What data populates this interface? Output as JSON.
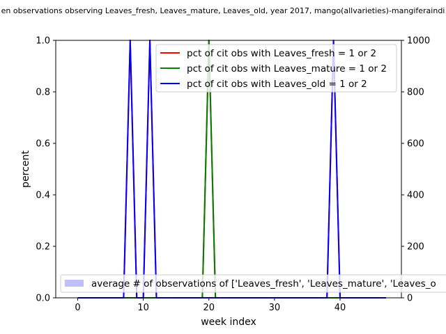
{
  "chart_data": {
    "type": "line",
    "title": "en observations observing Leaves_fresh, Leaves_mature, Leaves_old, year 2017, mango(allvarieties)-mangiferaindi",
    "xlabel": "week index",
    "ylabel": "percent",
    "xlim": [
      -3.35,
      49.35
    ],
    "ylim": [
      0,
      1.0
    ],
    "y2lim": [
      0,
      1000
    ],
    "x_ticks": [
      0,
      10,
      20,
      30,
      40
    ],
    "y_ticks": [
      0.0,
      0.2,
      0.4,
      0.6,
      0.8,
      1.0
    ],
    "y_tick_labels": [
      "0.0",
      "0.2",
      "0.4",
      "0.6",
      "0.8",
      "1.0"
    ],
    "y2_ticks": [
      0,
      200,
      400,
      600,
      800,
      1000
    ],
    "grid": false,
    "legend_lines_position": "top-right",
    "legend_bars_position": "bottom-left",
    "x": [
      0,
      1,
      2,
      3,
      4,
      5,
      6,
      7,
      8,
      9,
      10,
      11,
      12,
      13,
      14,
      15,
      16,
      17,
      18,
      19,
      20,
      21,
      22,
      23,
      24,
      25,
      26,
      27,
      28,
      29,
      30,
      31,
      32,
      33,
      34,
      35,
      36,
      37,
      38,
      39,
      40,
      41,
      42,
      43,
      44,
      45,
      46,
      47
    ],
    "series": [
      {
        "name": "pct of cit obs with Leaves_fresh = 1 or 2",
        "color": "#ff0000",
        "values": [
          0,
          0,
          0,
          0,
          0,
          0,
          0,
          0,
          1,
          0,
          0,
          1,
          0,
          0,
          0,
          0,
          0,
          0,
          0,
          0,
          1,
          0,
          0,
          0,
          0,
          0,
          0,
          0,
          0,
          0,
          0,
          0,
          0,
          0,
          0,
          0,
          0,
          0,
          0,
          1,
          0,
          0,
          0,
          0,
          0,
          0,
          0,
          0
        ]
      },
      {
        "name": "pct of cit obs with Leaves_mature = 1 or 2",
        "color": "#008000",
        "values": [
          0,
          0,
          0,
          0,
          0,
          0,
          0,
          0,
          0,
          0,
          0,
          0,
          0,
          0,
          0,
          0,
          0,
          0,
          0,
          0,
          1,
          0,
          0,
          0,
          0,
          0,
          0,
          0,
          0,
          0,
          0,
          0,
          0,
          0,
          0,
          0,
          0,
          0,
          0,
          0,
          0,
          0,
          0,
          0,
          0,
          0,
          0,
          0
        ]
      },
      {
        "name": "pct of cit obs with Leaves_old = 1 or 2",
        "color": "#0000ff",
        "values": [
          0,
          0,
          0,
          0,
          0,
          0,
          0,
          0,
          1,
          0,
          0,
          1,
          0,
          0,
          0,
          0,
          0,
          0,
          0,
          0,
          0,
          0,
          0,
          0,
          0,
          0,
          0,
          0,
          0,
          0,
          0,
          0,
          0,
          0,
          0,
          0,
          0,
          0,
          0,
          1,
          0,
          0,
          0,
          0,
          0,
          0,
          0,
          0
        ]
      }
    ],
    "bar_series": {
      "name": "average # of observations of ['Leaves_fresh', 'Leaves_mature', 'Leaves_o",
      "color": "#bfbfff",
      "values": [
        0,
        0,
        0,
        0,
        0,
        0,
        0,
        0,
        0,
        0,
        0,
        0,
        0,
        0,
        0,
        0,
        0,
        0,
        0,
        0,
        0,
        0,
        0,
        0,
        0,
        0,
        0,
        0,
        0,
        0,
        0,
        0,
        0,
        0,
        0,
        0,
        0,
        0,
        0,
        0,
        0,
        0,
        0,
        0,
        0,
        0,
        0,
        0
      ]
    }
  }
}
